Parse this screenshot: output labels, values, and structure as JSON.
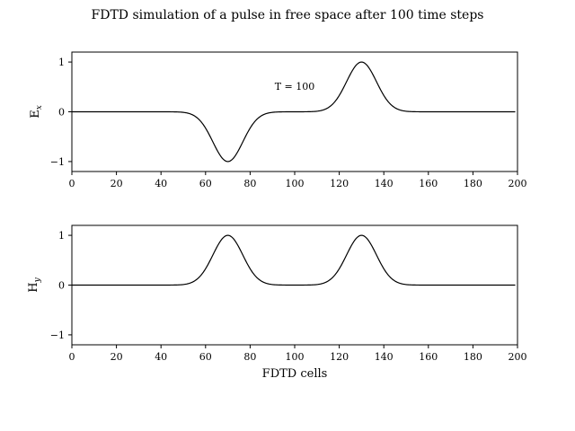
{
  "figure": {
    "title": "FDTD simulation of a pulse in free space after 100 time steps",
    "line_color": "#000000"
  },
  "chart_data": [
    {
      "type": "line",
      "ylabel_main": "E",
      "ylabel_sub": "x",
      "xlabel": "",
      "xlim": [
        0,
        200
      ],
      "ylim": [
        -1.2,
        1.2
      ],
      "xticks": [
        0,
        20,
        40,
        60,
        80,
        100,
        120,
        140,
        160,
        180,
        200
      ],
      "yticks": [
        -1,
        0,
        1
      ],
      "annotation": {
        "text": "T = 100",
        "x": 100,
        "y": 0.5
      },
      "series": [
        {
          "x_start": 0,
          "x_end": 199,
          "pulses": [
            {
              "center": 70,
              "amplitude": -1,
              "width": 6.7
            },
            {
              "center": 130,
              "amplitude": 1,
              "width": 6.7
            }
          ]
        }
      ]
    },
    {
      "type": "line",
      "ylabel_main": "H",
      "ylabel_sub": "y",
      "xlabel": "FDTD cells",
      "xlim": [
        0,
        200
      ],
      "ylim": [
        -1.2,
        1.2
      ],
      "xticks": [
        0,
        20,
        40,
        60,
        80,
        100,
        120,
        140,
        160,
        180,
        200
      ],
      "yticks": [
        -1,
        0,
        1
      ],
      "series": [
        {
          "x_start": 0,
          "x_end": 199,
          "pulses": [
            {
              "center": 70,
              "amplitude": 1,
              "width": 6.7
            },
            {
              "center": 130,
              "amplitude": 1,
              "width": 6.7
            }
          ]
        }
      ]
    }
  ]
}
